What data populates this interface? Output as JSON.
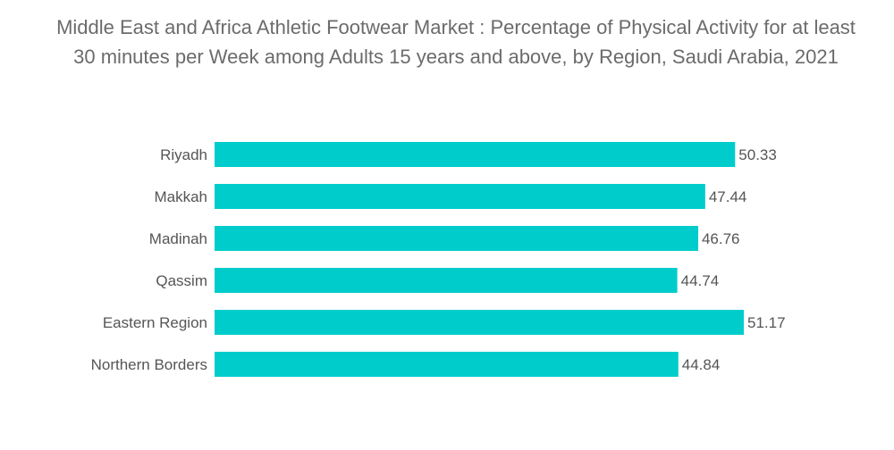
{
  "chart_data": {
    "type": "bar",
    "orientation": "horizontal",
    "title": "Middle East and Africa Athletic Footwear Market : Percentage of Physical Activity for at least 30 minutes per Week among Adults 15 years and above, by Region, Saudi Arabia, 2021",
    "categories": [
      "Riyadh",
      "Makkah",
      "Madinah",
      "Qassim",
      "Eastern Region",
      "Northern Borders"
    ],
    "values": [
      50.33,
      47.44,
      46.76,
      44.74,
      51.17,
      44.84
    ],
    "value_labels": [
      "50.33",
      "47.44",
      "46.76",
      "44.74",
      "51.17",
      "44.84"
    ],
    "xlabel": "",
    "ylabel": "",
    "xlim": [
      0,
      51.17
    ],
    "grid": false,
    "legend": "none",
    "bar_color": "#00CCCC"
  }
}
